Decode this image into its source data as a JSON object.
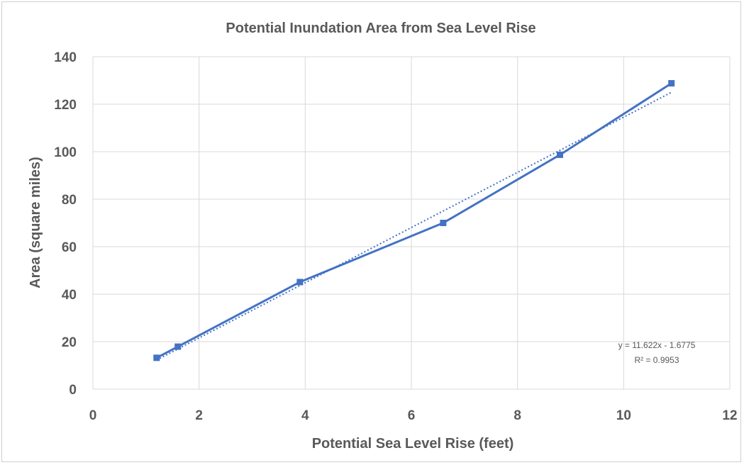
{
  "chart_data": {
    "type": "scatter",
    "title": "Potential Inundation Area from Sea Level Rise",
    "xlabel": "Potential Sea Level Rise (feet)",
    "ylabel": "Area (square miles)",
    "xlim": [
      0,
      12
    ],
    "ylim": [
      0,
      140
    ],
    "x_ticks": [
      0,
      2,
      4,
      6,
      8,
      10,
      12
    ],
    "y_ticks": [
      0,
      20,
      40,
      60,
      80,
      100,
      120,
      140
    ],
    "grid": true,
    "series": [
      {
        "x": [
          1.2,
          1.6,
          3.9,
          6.6,
          8.8,
          10.9
        ],
        "y": [
          13.2,
          17.9,
          45.1,
          70.0,
          98.7,
          128.8
        ],
        "color": "#4472c4",
        "marker": "square",
        "connected": true
      }
    ],
    "trendline": {
      "type": "linear",
      "slope": 11.622,
      "intercept": -1.6775,
      "color": "#4472c4",
      "style": "dotted",
      "equation": "y = 11.622x - 1.6775",
      "r_squared": "R² = 0.9953"
    }
  }
}
